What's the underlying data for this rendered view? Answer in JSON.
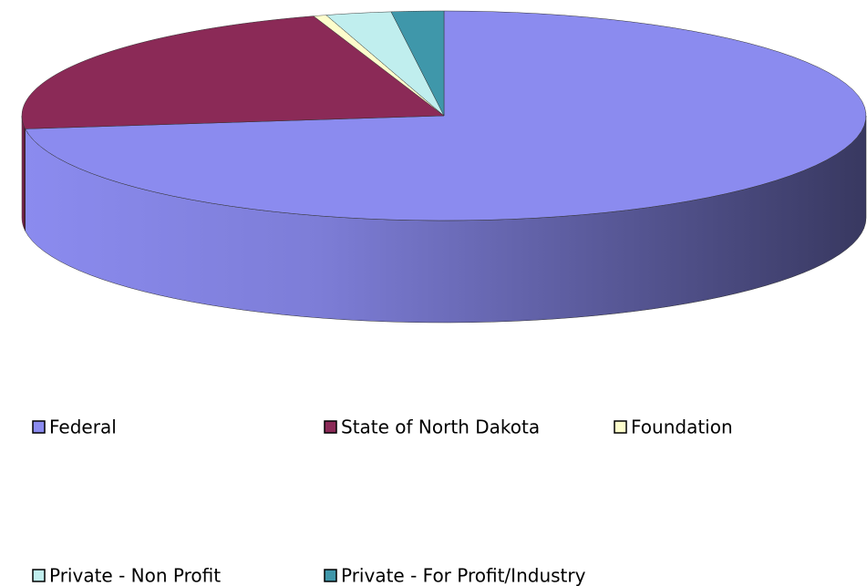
{
  "chart_data": {
    "type": "pie",
    "categories": [
      "Federal",
      "State of North Dakota",
      "Foundation",
      "Private - Non Profit",
      "Private - For Profit/Industry"
    ],
    "values": [
      73,
      22,
      0.5,
      2.5,
      2
    ],
    "colors": [
      "#8b8bef",
      "#8b2a57",
      "#fdfdcc",
      "#c0eeee",
      "#3f97aa"
    ],
    "legend": "bottom"
  }
}
